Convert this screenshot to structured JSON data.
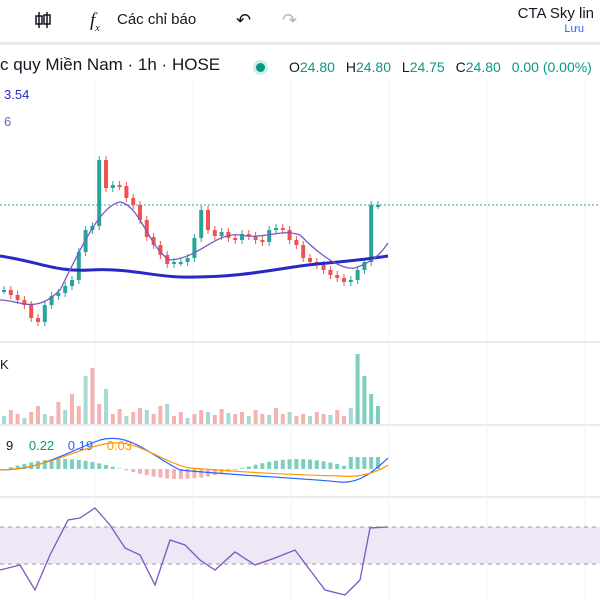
{
  "toolbar": {
    "candles_icon": "candlestick-icon",
    "indicators_icon": "fx-icon",
    "indicators_label": "Các chỉ báo",
    "undo_icon": "undo-icon",
    "redo_icon": "redo-icon",
    "layout_name": "CTA Sky lin",
    "save_label": "Lưu"
  },
  "legend": {
    "symbol_text": "c quy Miền Nam · 1h · HOSE",
    "status_color": "#089981",
    "open_label": "O",
    "open": "24.80",
    "high_label": "H",
    "high": "24.80",
    "low_label": "L",
    "low": "24.75",
    "close_label": "C",
    "close": "24.80",
    "change": "0.00 (0.00%)",
    "ma_value_1": "3.54",
    "ma_value_2": "6"
  },
  "volume_pane": {
    "label": "K"
  },
  "macd_pane": {
    "v1": "9",
    "v2": "0.22",
    "v3": "0.19",
    "v4": "0.03"
  },
  "colors": {
    "up": "#26a69a",
    "down": "#ef5350",
    "ma_long": "#2828c8",
    "ma_short": "#7e57c2",
    "macd": "#2962ff",
    "signal": "#ff9800",
    "rsi": "#7e57c2",
    "rsi_band": "#ede7f6"
  },
  "chart_data": {
    "type": "candlestick",
    "symbol_suffix": "c quy Miền Nam · 1h · HOSE",
    "candles": [
      {
        "o": 0,
        "h": 0,
        "l": 0,
        "c": 0,
        "u": 1
      }
    ]
  }
}
